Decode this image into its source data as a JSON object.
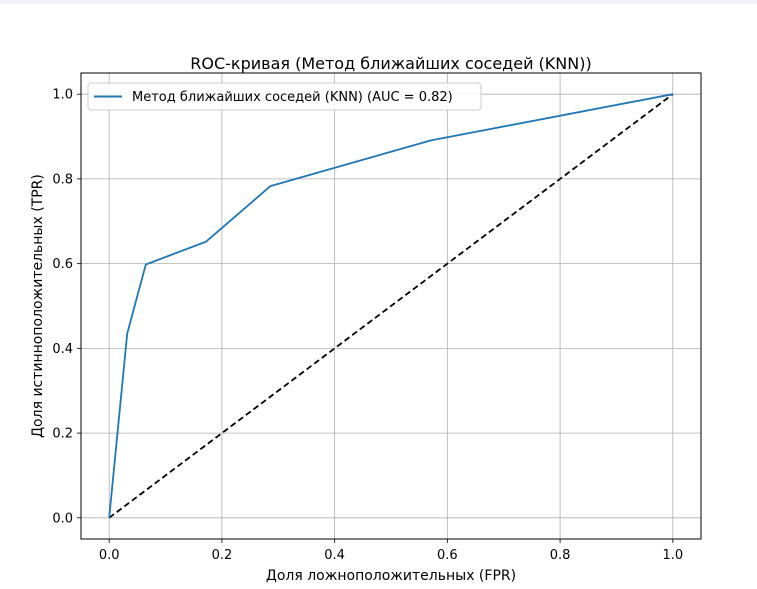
{
  "chart_data": {
    "type": "line",
    "title": "ROC-кривая (Метод ближайших соседей (KNN))",
    "xlabel": "Доля ложноположительных (FPR)",
    "ylabel": "Доля истинноположительных (TPR)",
    "xlim": [
      -0.05,
      1.05
    ],
    "ylim": [
      -0.05,
      1.05
    ],
    "xticks": [
      "0.0",
      "0.2",
      "0.4",
      "0.6",
      "0.8",
      "1.0"
    ],
    "yticks": [
      "0.0",
      "0.2",
      "0.4",
      "0.6",
      "0.8",
      "1.0"
    ],
    "grid": true,
    "legend_position": "upper-left",
    "series": [
      {
        "name": "Метод ближайших соседей (KNN) (AUC = 0.82)",
        "color": "#1f77b4",
        "style": "solid",
        "x": [
          0.0,
          0.032,
          0.065,
          0.172,
          0.286,
          0.571,
          1.0
        ],
        "y": [
          0.0,
          0.435,
          0.598,
          0.652,
          0.783,
          0.891,
          1.0
        ]
      },
      {
        "color": "#000000",
        "style": "dashed",
        "x": [
          0.0,
          1.0
        ],
        "y": [
          0.0,
          1.0
        ]
      }
    ]
  }
}
